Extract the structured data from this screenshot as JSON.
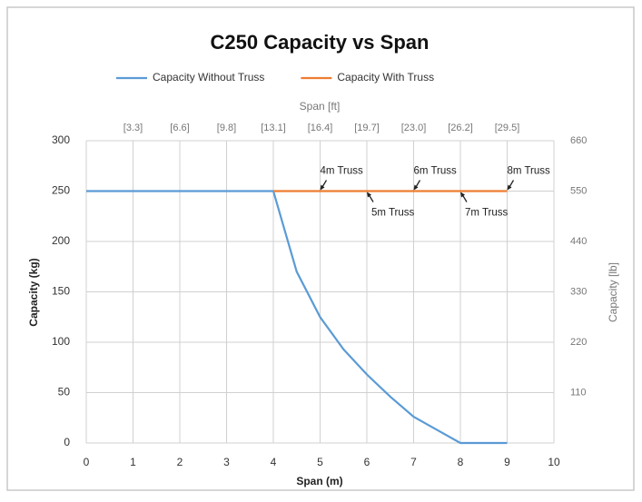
{
  "chart_data": {
    "type": "line",
    "title": "C250 Capacity vs Span",
    "x_label": "Span (m)",
    "y_label": "Capacity (kg)",
    "y2_label": "Capacity [lb]",
    "x2_label": "Span [ft]",
    "x": [
      0,
      1,
      2,
      3,
      4,
      4.5,
      5,
      5.5,
      6,
      6.5,
      7,
      7.5,
      8,
      9
    ],
    "series": [
      {
        "name": "Capacity Without Truss",
        "color": "#5b9bd5",
        "values": [
          250,
          250,
          250,
          250,
          250,
          170,
          125,
          93,
          68,
          46,
          26,
          13,
          0,
          0
        ]
      },
      {
        "name": "Capacity With Truss",
        "color": "#ed7d31",
        "values": [
          null,
          null,
          null,
          null,
          250,
          250,
          250,
          250,
          250,
          250,
          250,
          250,
          250,
          250
        ]
      }
    ],
    "xlim": [
      0,
      10
    ],
    "xticks": [
      0,
      1,
      2,
      3,
      4,
      5,
      6,
      7,
      8,
      9,
      10
    ],
    "x2ticks": [
      {
        "value": 1,
        "label": "[3.3]"
      },
      {
        "value": 2,
        "label": "[6.6]"
      },
      {
        "value": 3,
        "label": "[9.8]"
      },
      {
        "value": 4,
        "label": "[13.1]"
      },
      {
        "value": 5,
        "label": "[16.4]"
      },
      {
        "value": 6,
        "label": "[19.7]"
      },
      {
        "value": 7,
        "label": "[23.0]"
      },
      {
        "value": 8,
        "label": "[26.2]"
      },
      {
        "value": 9,
        "label": "[29.5]"
      }
    ],
    "ylim": [
      0,
      300
    ],
    "yticks": [
      0,
      50,
      100,
      150,
      200,
      250,
      300
    ],
    "y2lim": [
      0,
      660
    ],
    "y2ticks": [
      110,
      220,
      330,
      440,
      550,
      660
    ],
    "grid": true,
    "legend": "top",
    "annotations": [
      {
        "text": "4m Truss",
        "x": 5,
        "y": 250
      },
      {
        "text": "5m Truss",
        "x": 6,
        "y": 250
      },
      {
        "text": "6m Truss",
        "x": 7,
        "y": 250
      },
      {
        "text": "7m Truss",
        "x": 8,
        "y": 250
      },
      {
        "text": "8m Truss",
        "x": 9,
        "y": 250
      }
    ]
  }
}
